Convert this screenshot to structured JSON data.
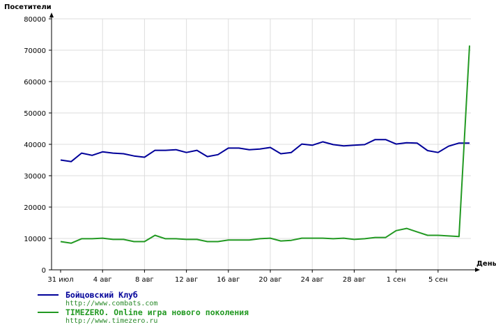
{
  "chart_data": {
    "type": "line",
    "ylabel": "Посетители",
    "xlabel": "День",
    "ylim": [
      0,
      80000
    ],
    "yticks": [
      0,
      10000,
      20000,
      30000,
      40000,
      50000,
      60000,
      70000,
      80000
    ],
    "x_tick_labels": [
      {
        "i": 0,
        "label": "31 июл"
      },
      {
        "i": 4,
        "label": "4 авг"
      },
      {
        "i": 8,
        "label": "8 авг"
      },
      {
        "i": 12,
        "label": "12 авг"
      },
      {
        "i": 16,
        "label": "16 авг"
      },
      {
        "i": 20,
        "label": "20 авг"
      },
      {
        "i": 24,
        "label": "24 авг"
      },
      {
        "i": 28,
        "label": "28 авг"
      },
      {
        "i": 32,
        "label": "1 сен"
      },
      {
        "i": 36,
        "label": "5 сен"
      }
    ],
    "grid": true,
    "legend_position": "bottom-left",
    "series": [
      {
        "name": "Бойцовский Клуб",
        "url": "http://www.combats.com",
        "color": "#000099",
        "values": [
          35000,
          34500,
          37200,
          36500,
          37600,
          37200,
          37000,
          36300,
          35900,
          38100,
          38100,
          38300,
          37400,
          38100,
          36100,
          36700,
          38800,
          38800,
          38300,
          38500,
          39000,
          37000,
          37400,
          40100,
          39700,
          40800,
          39900,
          39500,
          39700,
          39900,
          41500,
          41500,
          40100,
          40500,
          40400,
          38000,
          37400,
          39400,
          40400,
          40400
        ]
      },
      {
        "name": "TIMEZERO. Online игра нового поколения",
        "url": "http://www.timezero.ru",
        "color": "#229922",
        "values": [
          9000,
          8500,
          9900,
          9900,
          10100,
          9700,
          9700,
          9000,
          9000,
          11000,
          9900,
          9900,
          9700,
          9700,
          9000,
          9000,
          9500,
          9500,
          9500,
          9900,
          10100,
          9200,
          9400,
          10100,
          10100,
          10100,
          9900,
          10100,
          9700,
          9900,
          10300,
          10300,
          12500,
          13200,
          12100,
          11000,
          11000,
          10800,
          10600,
          71500
        ]
      }
    ]
  }
}
